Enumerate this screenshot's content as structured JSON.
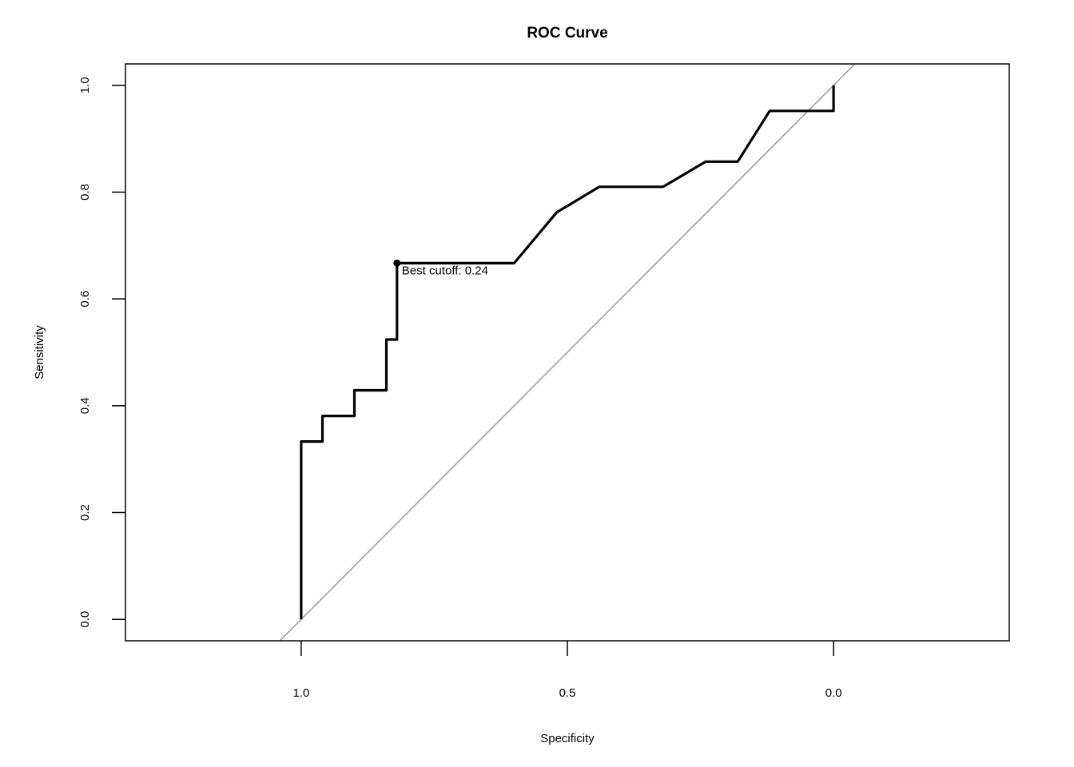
{
  "chart_data": {
    "type": "line",
    "title": "ROC Curve",
    "xlabel": "Specificity",
    "ylabel": "Sensitivity",
    "x_reversed": true,
    "xlim": [
      1.33,
      -0.33
    ],
    "ylim": [
      -0.04,
      1.04
    ],
    "x_ticks": [
      1.0,
      0.5,
      0.0
    ],
    "x_tick_labels": [
      "1.0",
      "0.5",
      "0.0"
    ],
    "y_ticks": [
      0.0,
      0.2,
      0.4,
      0.6,
      0.8,
      1.0
    ],
    "y_tick_labels": [
      "0.0",
      "0.2",
      "0.4",
      "0.6",
      "0.8",
      "1.0"
    ],
    "grid": false,
    "legend": "none",
    "series": [
      {
        "specificity": [
          1.0,
          1.0,
          0.96,
          0.96,
          0.9,
          0.9,
          0.84,
          0.84,
          0.82,
          0.82,
          0.6,
          0.52,
          0.44,
          0.32,
          0.24,
          0.18,
          0.12,
          0.0,
          0.0
        ],
        "sensitivity": [
          0.0,
          0.333,
          0.333,
          0.381,
          0.381,
          0.429,
          0.429,
          0.524,
          0.524,
          0.667,
          0.667,
          0.762,
          0.81,
          0.81,
          0.857,
          0.857,
          0.952,
          0.952,
          1.0
        ],
        "color": "#000000"
      }
    ],
    "reference_line": {
      "from": [
        1.0,
        0.0
      ],
      "to": [
        0.0,
        1.0
      ],
      "color": "#999999"
    },
    "best_cutoff": {
      "specificity": 0.82,
      "sensitivity": 0.667,
      "label": "Best cutoff: 0.24"
    }
  }
}
